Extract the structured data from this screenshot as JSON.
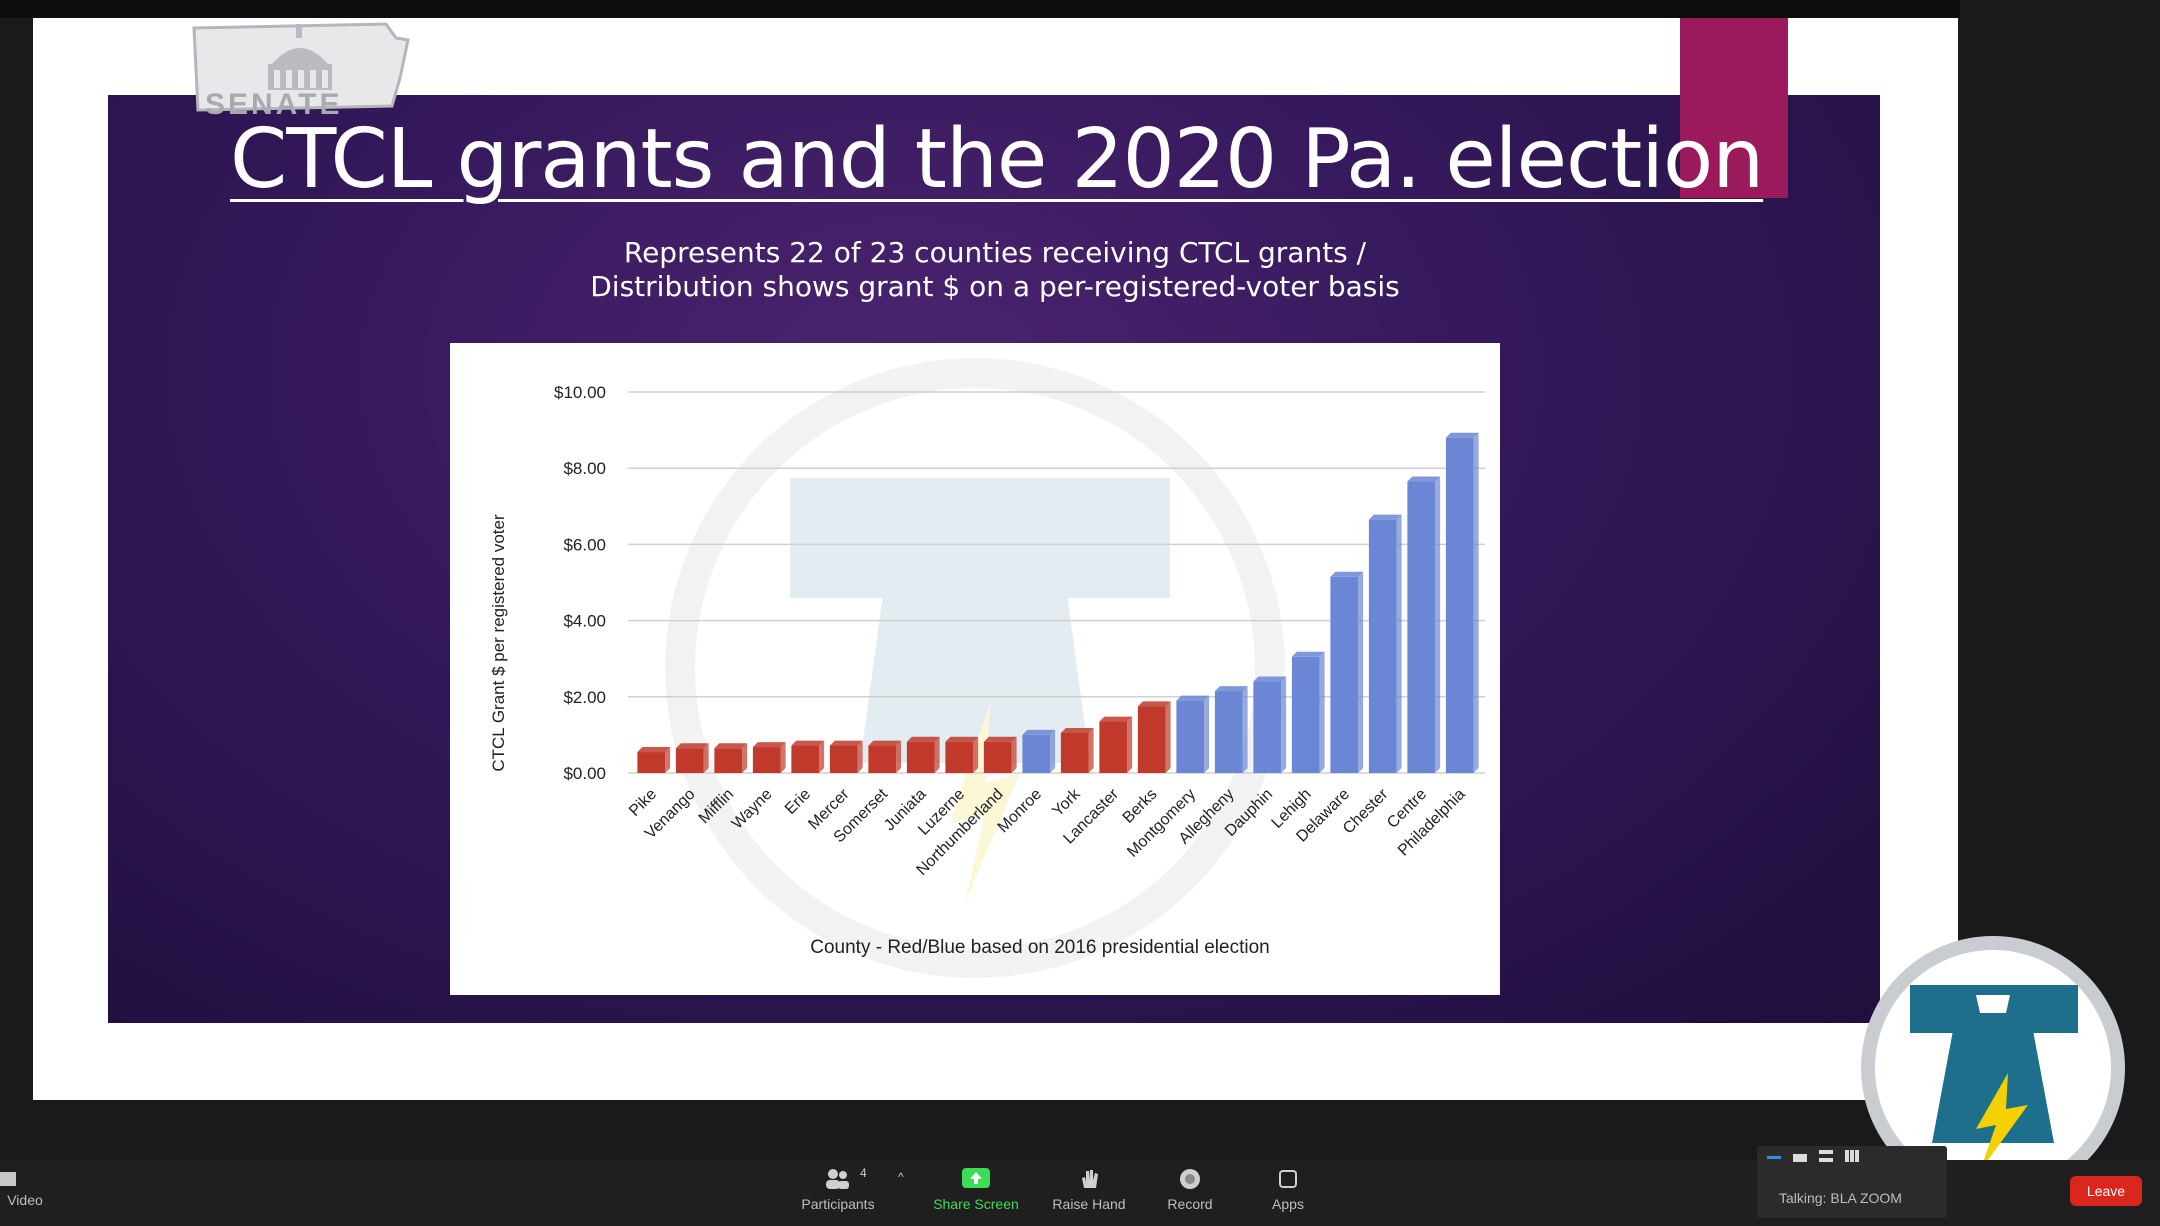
{
  "slide": {
    "logo_text": "SENATE",
    "title": "CTCL grants and the 2020 Pa. election",
    "subtitle_line1": "Represents 22 of 23 counties receiving CTCL grants /",
    "subtitle_line2": "Distribution shows grant $ on a per-registered-voter basis"
  },
  "chart_data": {
    "type": "bar",
    "xlabel": "County - Red/Blue based on 2016 presidential election",
    "ylabel": "CTCL Grant $ per registered voter",
    "ylim": [
      0,
      10
    ],
    "yticks": [
      "$10.00",
      "$8.00",
      "$6.00",
      "$4.00",
      "$2.00",
      "$0.00"
    ],
    "grid": true,
    "categories": [
      "Pike",
      "Venango",
      "Mifflin",
      "Wayne",
      "Erie",
      "Mercer",
      "Somerset",
      "Juniata",
      "Luzerne",
      "Northumberland",
      "Monroe",
      "York",
      "Lancaster",
      "Berks",
      "Montgomery",
      "Allegheny",
      "Dauphin",
      "Lehigh",
      "Delaware",
      "Chester",
      "Centre",
      "Philadelphia"
    ],
    "values": [
      0.55,
      0.65,
      0.65,
      0.68,
      0.72,
      0.72,
      0.72,
      0.82,
      0.82,
      0.82,
      1.0,
      1.05,
      1.35,
      1.75,
      1.9,
      2.15,
      2.4,
      3.05,
      5.15,
      6.65,
      7.65,
      8.8
    ],
    "colors": [
      "red",
      "red",
      "red",
      "red",
      "red",
      "red",
      "red",
      "red",
      "red",
      "red",
      "blue",
      "red",
      "red",
      "red",
      "blue",
      "blue",
      "blue",
      "blue",
      "blue",
      "blue",
      "blue",
      "blue"
    ],
    "palette": {
      "red": "#c0392b",
      "blue": "#6a86d4"
    }
  },
  "toolbar": {
    "video_label": "Video",
    "participants_label": "Participants",
    "participants_count": "4",
    "share_label": "Share Screen",
    "raise_label": "Raise Hand",
    "record_label": "Record",
    "apps_label": "Apps",
    "talking_label": "Talking: BLA ZOOM",
    "leave_label": "Leave"
  },
  "colors": {
    "accent": "#9b1a5c",
    "share_green": "#3ddc56",
    "leave_red": "#d9271d"
  }
}
